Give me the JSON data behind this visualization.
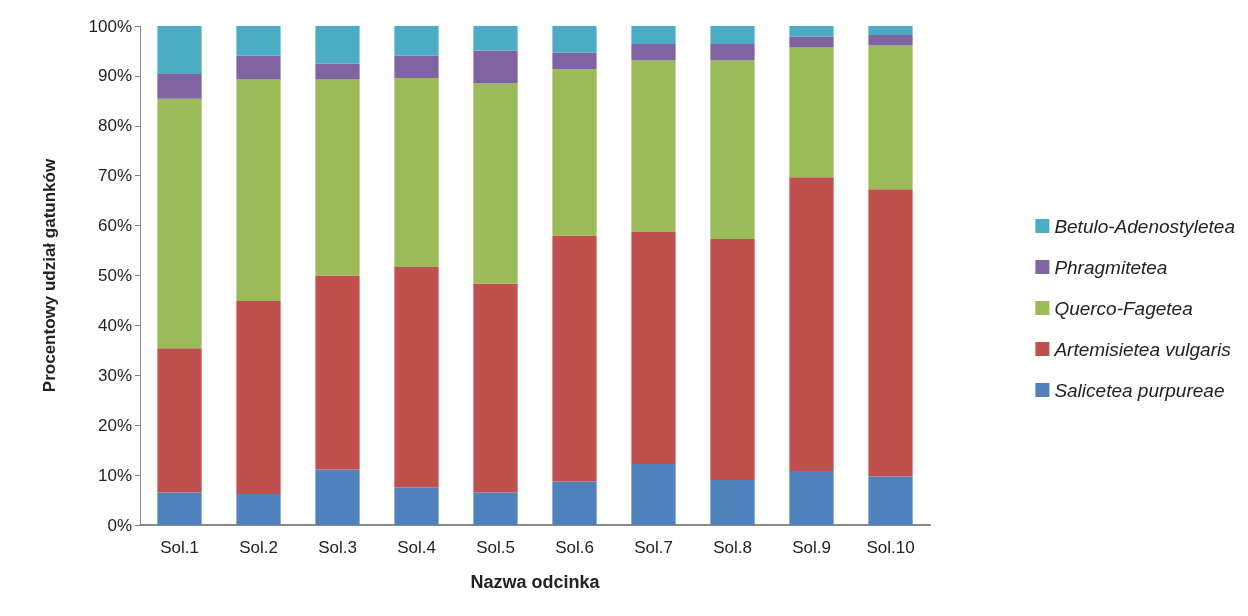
{
  "chart_data": {
    "type": "bar",
    "stacked": true,
    "xlabel": "Nazwa odcinka",
    "ylabel": "Procentowy udział gatunków",
    "categories": [
      "Sol.1",
      "Sol.2",
      "Sol.3",
      "Sol.4",
      "Sol.5",
      "Sol.6",
      "Sol.7",
      "Sol.8",
      "Sol.9",
      "Sol.10"
    ],
    "series": [
      {
        "name": "Salicetea purpureae",
        "color": "#4f81bd",
        "values": [
          6.5,
          6.2,
          11.1,
          7.5,
          6.5,
          8.7,
          12.2,
          9.0,
          10.8,
          9.7
        ]
      },
      {
        "name": "Artemisietea vulgaris",
        "color": "#c0504d",
        "values": [
          28.9,
          38.7,
          38.9,
          44.2,
          41.9,
          49.3,
          46.5,
          48.3,
          58.9,
          57.6
        ]
      },
      {
        "name": "Querco-Fagetea",
        "color": "#9bbb59",
        "values": [
          50.0,
          44.4,
          39.3,
          37.9,
          40.2,
          33.4,
          34.4,
          35.8,
          26.0,
          28.8
        ]
      },
      {
        "name": "Phragmitetea",
        "color": "#8064a2",
        "values": [
          5.0,
          4.8,
          3.2,
          4.5,
          6.5,
          3.3,
          3.3,
          3.3,
          2.2,
          2.1
        ]
      },
      {
        "name": "Betulo-Adenostyletea",
        "color": "#4bacc6",
        "values": [
          9.6,
          5.9,
          7.5,
          5.9,
          4.9,
          5.3,
          3.6,
          3.6,
          2.1,
          1.8
        ]
      }
    ],
    "ylim": [
      0,
      100
    ],
    "yticks": [
      {
        "value": 0,
        "label": "0%"
      },
      {
        "value": 10,
        "label": "10%"
      },
      {
        "value": 20,
        "label": "20%"
      },
      {
        "value": 30,
        "label": "30%"
      },
      {
        "value": 40,
        "label": "40%"
      },
      {
        "value": 50,
        "label": "50%"
      },
      {
        "value": 60,
        "label": "60%"
      },
      {
        "value": 70,
        "label": "70%"
      },
      {
        "value": 80,
        "label": "80%"
      },
      {
        "value": 90,
        "label": "90%"
      },
      {
        "value": 100,
        "label": "100%"
      }
    ],
    "grid": false,
    "legend": "right"
  }
}
